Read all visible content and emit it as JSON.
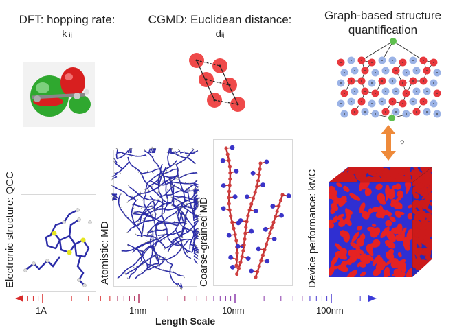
{
  "header": {
    "dft_title": "DFT: hopping rate:",
    "dft_symbol": "k",
    "dft_subscript": "ij",
    "cgmd_title": "CGMD: Euclidean distance:",
    "cgmd_symbol": "d",
    "cgmd_subscript": "ij",
    "graph_title_line1": "Graph-based structure",
    "graph_title_line2": "quantification",
    "question_mark": "?"
  },
  "side_labels": {
    "qcc": "Electronic structure: QCC",
    "md": "Atomistic: MD",
    "cgmd": "Coarse-grained MD",
    "kmc": "Device performance: kMC"
  },
  "axis": {
    "label": "Length Scale",
    "ticks": [
      "1A",
      "1nm",
      "10nm",
      "100nm"
    ]
  },
  "colors": {
    "red": "#e8383d",
    "blue": "#2b2ccf",
    "green": "#3aa63a",
    "node_blue": "#9bb3e6",
    "orange": "#ee8a3a"
  }
}
